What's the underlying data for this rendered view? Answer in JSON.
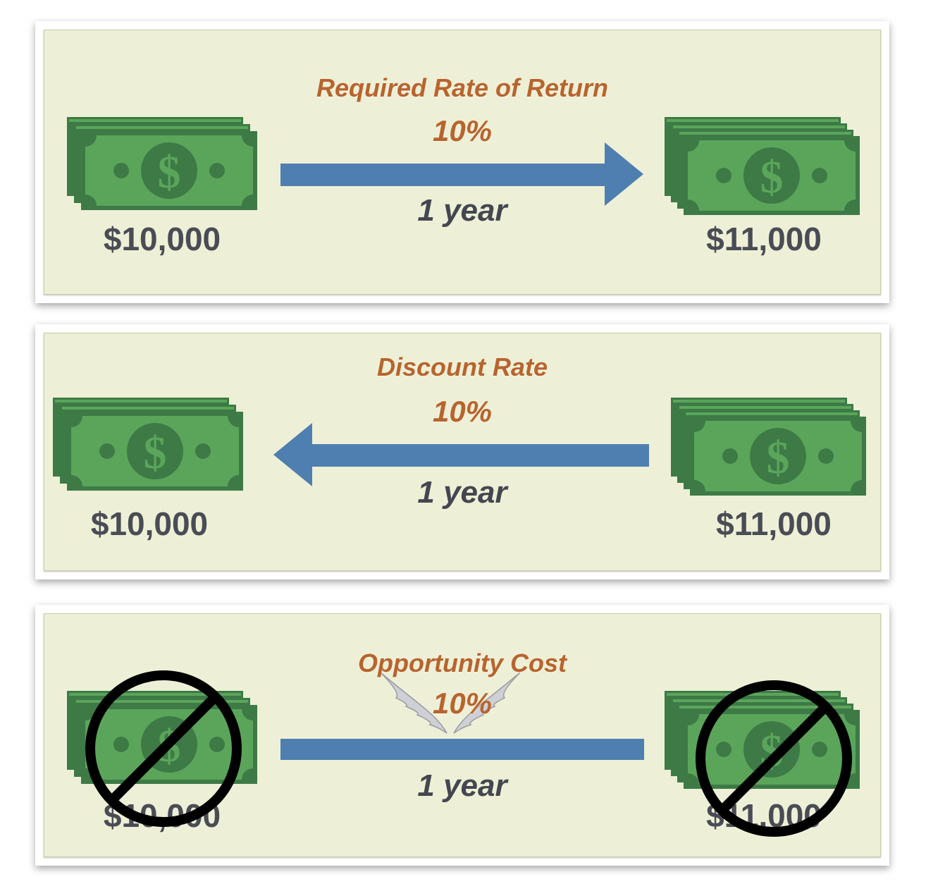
{
  "panels": [
    {
      "title": "Required Rate of Return",
      "rate": "10%",
      "period": "1 year",
      "left_amount": "$10,000",
      "right_amount": "$11,000",
      "arrow_direction": "right"
    },
    {
      "title": "Discount Rate",
      "rate": "10%",
      "period": "1 year",
      "left_amount": "$10,000",
      "right_amount": "$11,000",
      "arrow_direction": "left"
    },
    {
      "title": "Opportunity Cost",
      "rate": "10%",
      "period": "1 year",
      "left_amount": "$10,000",
      "right_amount": "$11,000",
      "arrow_direction": "none",
      "crossed_out": true
    }
  ],
  "colors": {
    "panel_bg": "#edf0d6",
    "label_orange": "#b8642e",
    "text_dark": "#4a4c55",
    "arrow_blue": "#4f7fb0",
    "bill_green": "#4f9a4f",
    "bill_dark": "#3a6e41"
  },
  "icons": [
    "money-stack-icon",
    "dollar-icon",
    "arrow-icon",
    "prohibited-icon",
    "wings-icon"
  ]
}
